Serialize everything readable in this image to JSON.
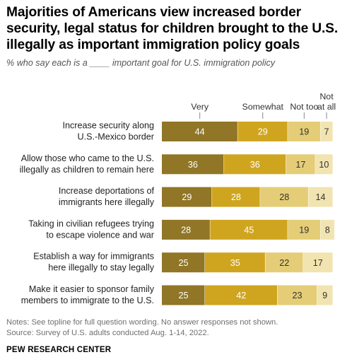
{
  "title": "Majorities of Americans view increased border security, legal status for children brought to the U.S. illegally as important immigration policy goals",
  "subtitle": "% who say each is a ____ important goal for U.S. immigration policy",
  "notes": {
    "line1": "Notes: See topline for full question wording. No answer responses not shown.",
    "line2": "Source: Survey of U.S. adults conducted Aug. 1-14, 2022."
  },
  "source_org": "PEW RESEARCH CENTER",
  "colors": {
    "very": "#907626",
    "somewhat": "#cfa520",
    "not_too": "#e4cd76",
    "not_at_all": "#f1e4b0",
    "light_text": "#ffffff",
    "dark_text": "#333333"
  },
  "chart_data": {
    "type": "bar",
    "orientation": "horizontal",
    "stacked": true,
    "xlim": [
      0,
      100
    ],
    "legend_placement": "top",
    "categories": [
      [
        "Increase security along",
        "U.S.-Mexico border"
      ],
      [
        "Allow those who came to the U.S.",
        "illegally as children to remain here"
      ],
      [
        "Increase deportations of",
        "immigrants here illegally"
      ],
      [
        "Taking in civilian refugees trying",
        "to escape violence and war"
      ],
      [
        "Establish a way for immigrants",
        "here illegally to stay legally"
      ],
      [
        "Make it easier to sponsor family",
        "members to immigrate to the U.S."
      ]
    ],
    "series": [
      {
        "name": "Very",
        "label_lines": [
          "Very"
        ],
        "color": "#907626",
        "values": [
          44,
          36,
          29,
          28,
          25,
          25
        ]
      },
      {
        "name": "Somewhat",
        "label_lines": [
          "Somewhat"
        ],
        "color": "#cfa520",
        "values": [
          29,
          36,
          28,
          45,
          35,
          42
        ]
      },
      {
        "name": "Not too",
        "label_lines": [
          "Not too"
        ],
        "color": "#e4cd76",
        "values": [
          19,
          17,
          28,
          19,
          22,
          23
        ]
      },
      {
        "name": "Not at all",
        "label_lines": [
          "Not",
          "at all"
        ],
        "color": "#f1e4b0",
        "values": [
          7,
          10,
          14,
          8,
          17,
          9
        ]
      }
    ]
  }
}
